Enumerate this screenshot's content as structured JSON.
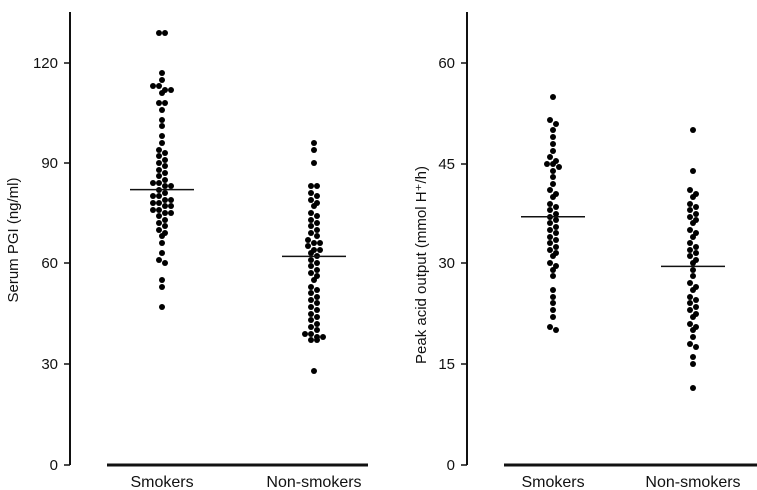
{
  "chart_data": [
    {
      "type": "scatter",
      "ylabel": "Serum PGI (ng/ml)",
      "ylim": [
        0,
        130
      ],
      "yticks": [
        0,
        30,
        60,
        90,
        120
      ],
      "ytick_labels": [
        "0",
        "30",
        "60",
        "90",
        "120"
      ],
      "categories": [
        "Smokers",
        "Non-smokers"
      ],
      "series": [
        {
          "category": "Smokers",
          "mean": 82,
          "values": [
            129,
            129,
            117,
            115,
            113,
            113,
            112,
            112,
            111,
            108,
            108,
            106,
            103,
            101,
            98,
            96,
            94,
            93,
            92,
            91,
            90,
            89,
            88,
            87,
            86,
            85,
            84,
            84,
            83,
            83,
            82,
            81,
            80,
            80,
            79,
            79,
            78,
            78,
            77,
            77,
            76,
            76,
            75,
            75,
            74,
            73,
            72,
            71,
            70,
            69,
            68,
            66,
            63,
            61,
            60,
            55,
            53,
            47
          ]
        },
        {
          "category": "Non-smokers",
          "mean": 62,
          "values": [
            96,
            94,
            90,
            83,
            83,
            81,
            80,
            79,
            78,
            77,
            75,
            74,
            73,
            72,
            71,
            70,
            69,
            68,
            67,
            66,
            66,
            65,
            64,
            64,
            63,
            62,
            61,
            60,
            59,
            58,
            57,
            56,
            55,
            53,
            52,
            51,
            50,
            49,
            48,
            47,
            46,
            45,
            44,
            43,
            42,
            41,
            40,
            39,
            39,
            38,
            38,
            37,
            37,
            28
          ]
        }
      ]
    },
    {
      "type": "scatter",
      "ylabel": "Peak acid output (mmol H⁺/h)",
      "ylim": [
        0,
        65
      ],
      "yticks": [
        0,
        15,
        30,
        45,
        60
      ],
      "ytick_labels": [
        "0",
        "15",
        "30",
        "45",
        "60"
      ],
      "categories": [
        "Smokers",
        "Non-smokers"
      ],
      "series": [
        {
          "category": "Smokers",
          "mean": 37,
          "values": [
            55,
            51.5,
            51,
            50,
            49,
            48,
            47,
            46,
            45.5,
            45,
            45,
            44.5,
            44,
            43,
            42,
            41,
            40.5,
            40,
            39,
            38.5,
            38,
            37.5,
            37,
            36.5,
            36,
            35.5,
            35,
            34.5,
            34,
            33.5,
            33,
            32.5,
            32,
            31.5,
            31,
            30,
            29.5,
            29,
            28,
            26,
            25,
            24,
            23,
            22,
            20.5,
            20
          ]
        },
        {
          "category": "Non-smokers",
          "mean": 29.5,
          "values": [
            50,
            44,
            41,
            40.5,
            40,
            39,
            38.5,
            38,
            37.5,
            37,
            36.5,
            36,
            35,
            34.5,
            34,
            33,
            32.5,
            32,
            31.5,
            31,
            30.5,
            30,
            29,
            28,
            27,
            26.5,
            26,
            25,
            24.5,
            24,
            23.5,
            23,
            22.5,
            22,
            21,
            20.5,
            20,
            19,
            18,
            17.5,
            16,
            15,
            11.5
          ]
        }
      ]
    }
  ]
}
